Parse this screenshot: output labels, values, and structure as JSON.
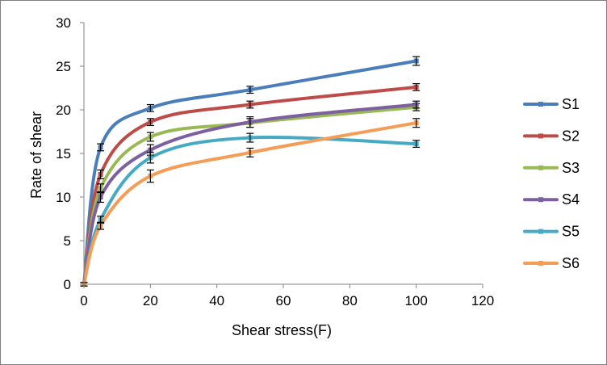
{
  "chart_data": {
    "type": "line",
    "title": "",
    "xlabel": "Shear stress(F)",
    "ylabel": "Rate of shear",
    "xlim": [
      0,
      120
    ],
    "ylim": [
      0,
      30
    ],
    "xticks": [
      0,
      20,
      40,
      60,
      80,
      100,
      120
    ],
    "yticks": [
      0,
      5,
      10,
      15,
      20,
      25,
      30
    ],
    "grid": false,
    "legend_position": "right",
    "smoothed": true,
    "error_bars": true,
    "series": [
      {
        "name": "S1",
        "color": "#4a7ebb",
        "x": [
          0,
          5,
          20,
          50,
          100
        ],
        "y": [
          0,
          15.7,
          20.2,
          22.3,
          25.6
        ],
        "err": [
          0.2,
          0.4,
          0.4,
          0.4,
          0.5
        ]
      },
      {
        "name": "S2",
        "color": "#be4b48",
        "x": [
          0,
          5,
          20,
          50,
          100
        ],
        "y": [
          0,
          12.6,
          18.6,
          20.6,
          22.6
        ],
        "err": [
          0.2,
          0.5,
          0.4,
          0.4,
          0.4
        ]
      },
      {
        "name": "S3",
        "color": "#98b954",
        "x": [
          0,
          5,
          20,
          50,
          100
        ],
        "y": [
          0,
          11.0,
          16.9,
          18.5,
          20.3
        ],
        "err": [
          0.2,
          0.5,
          0.5,
          0.5,
          0.4
        ]
      },
      {
        "name": "S4",
        "color": "#7d60a0",
        "x": [
          0,
          5,
          20,
          50,
          100
        ],
        "y": [
          0,
          10.0,
          15.4,
          18.6,
          20.6
        ],
        "err": [
          0.2,
          0.6,
          0.6,
          0.6,
          0.4
        ]
      },
      {
        "name": "S5",
        "color": "#46aac5",
        "x": [
          0,
          5,
          20,
          50,
          100
        ],
        "y": [
          0,
          7.4,
          14.5,
          16.8,
          16.1
        ],
        "err": [
          0.2,
          0.4,
          0.6,
          0.5,
          0.4
        ]
      },
      {
        "name": "S6",
        "color": "#f59d56",
        "x": [
          0,
          5,
          20,
          50,
          100
        ],
        "y": [
          0,
          6.7,
          12.4,
          15.1,
          18.5
        ],
        "err": [
          0.2,
          0.4,
          0.7,
          0.5,
          0.5
        ]
      }
    ]
  }
}
